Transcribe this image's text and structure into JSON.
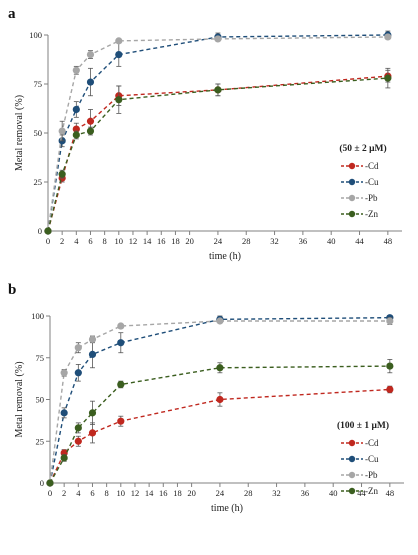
{
  "colors": {
    "Cd": "#c0281f",
    "Cu": "#1f4e79",
    "Pb": "#a6a6a6",
    "Zn": "#3b5e1f",
    "axis": "#808080",
    "text": "#222222"
  },
  "chart_data": [
    {
      "type": "line",
      "panel_label": "a",
      "xlabel": "time (h)",
      "ylabel": "Metal removal (%)",
      "xlim": [
        0,
        50
      ],
      "ylim": [
        0,
        100
      ],
      "xticks": [
        0,
        2,
        4,
        6,
        8,
        10,
        12,
        14,
        16,
        18,
        20,
        24,
        28,
        32,
        36,
        40,
        44,
        48
      ],
      "yticks": [
        0,
        25,
        50,
        75,
        100
      ],
      "legend_title": "(50 ± 2 μM)",
      "legend_placement": "right",
      "x": [
        0,
        2,
        4,
        6,
        10,
        24,
        48
      ],
      "series": [
        {
          "name": "-Cd",
          "color_key": "Cd",
          "values": [
            0,
            27,
            52,
            56,
            69,
            72,
            79
          ],
          "errors": [
            0,
            2,
            3,
            6,
            5,
            3,
            3
          ]
        },
        {
          "name": "-Cu",
          "color_key": "Cu",
          "values": [
            0,
            46,
            62,
            76,
            90,
            99,
            100
          ],
          "errors": [
            0,
            3,
            4,
            7,
            6,
            2,
            2
          ]
        },
        {
          "name": "-Pb",
          "color_key": "Pb",
          "values": [
            0,
            51,
            82,
            90,
            97,
            98,
            99
          ],
          "errors": [
            0,
            5,
            2,
            2,
            1,
            1,
            1
          ]
        },
        {
          "name": "-Zn",
          "color_key": "Zn",
          "values": [
            0,
            29,
            49,
            51,
            67,
            72,
            78
          ],
          "errors": [
            0,
            2,
            2,
            2,
            7,
            3,
            5
          ]
        }
      ]
    },
    {
      "type": "line",
      "panel_label": "b",
      "xlabel": "time (h)",
      "ylabel": "Metal removal (%)",
      "xlim": [
        0,
        50
      ],
      "ylim": [
        0,
        100
      ],
      "xticks": [
        0,
        2,
        4,
        6,
        8,
        10,
        12,
        14,
        16,
        18,
        20,
        24,
        28,
        32,
        36,
        40,
        44,
        48
      ],
      "yticks": [
        0,
        25,
        50,
        75,
        100
      ],
      "legend_title": "(100 ± 1 μM)",
      "legend_placement": "right",
      "x": [
        0,
        2,
        4,
        6,
        10,
        24,
        48
      ],
      "series": [
        {
          "name": "-Cd",
          "color_key": "Cd",
          "values": [
            0,
            18,
            25,
            30,
            37,
            50,
            56
          ],
          "errors": [
            0,
            2,
            3,
            6,
            3,
            4,
            2
          ]
        },
        {
          "name": "-Cu",
          "color_key": "Cu",
          "values": [
            0,
            42,
            66,
            77,
            84,
            98,
            99
          ],
          "errors": [
            0,
            3,
            5,
            8,
            6,
            2,
            1
          ]
        },
        {
          "name": "-Pb",
          "color_key": "Pb",
          "values": [
            0,
            66,
            81,
            86,
            94,
            97,
            97
          ],
          "errors": [
            0,
            2,
            3,
            2,
            1,
            1,
            2
          ]
        },
        {
          "name": "-Zn",
          "color_key": "Zn",
          "values": [
            0,
            15,
            33,
            42,
            59,
            69,
            70
          ],
          "errors": [
            0,
            2,
            3,
            7,
            2,
            3,
            4
          ]
        }
      ]
    }
  ]
}
